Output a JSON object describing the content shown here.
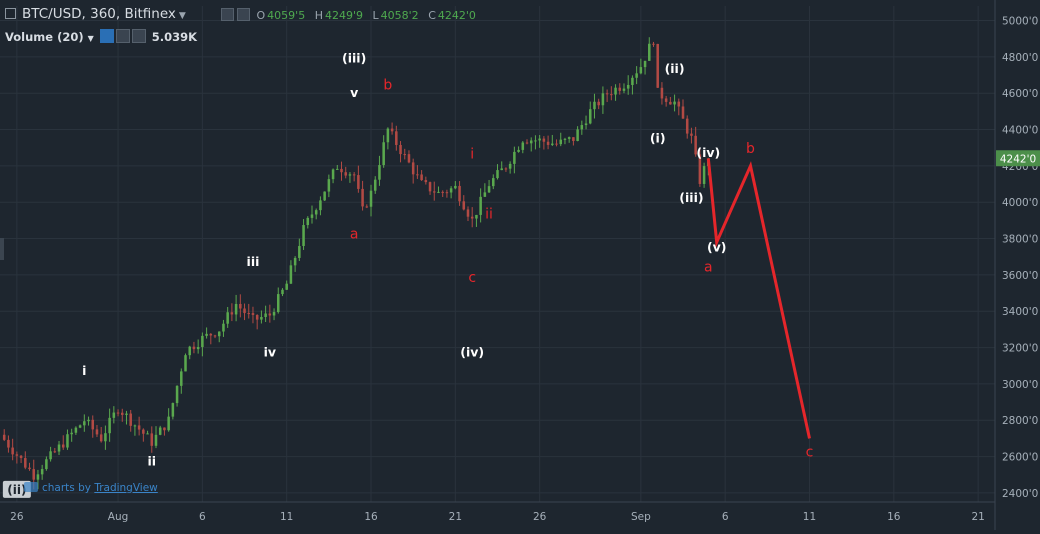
{
  "header": {
    "symbol_label": "BTC/USD, 360, Bitfinex",
    "ohlc": {
      "o_key": "O",
      "o": "4059'5",
      "h_key": "H",
      "h": "4249'9",
      "l_key": "L",
      "l": "4058'2",
      "c_key": "C",
      "c": "4242'0"
    },
    "volume_label": "Volume (20)",
    "volume_value": "5.039K"
  },
  "watermark": {
    "prefix": "charts by",
    "brand": "TradingView"
  },
  "colors": {
    "background": "#1e262f",
    "grid": "#2a333d",
    "up": "#5aa84e",
    "down": "#b24a44",
    "wave_red": "#e5262b",
    "label_white": "#ffffff",
    "label_red": "#e5262b",
    "price_tag": "#4c8f4a",
    "axis_text": "#a6b0ba"
  },
  "chart_data": {
    "type": "candlestick",
    "symbol": "BTC/USD",
    "timeframe_minutes": 360,
    "exchange": "Bitfinex",
    "last_price": 4242.0,
    "last_price_label": "4242'0",
    "ylim": [
      2350,
      5080
    ],
    "xlim": [
      "2017-07-25",
      "2017-09-22"
    ],
    "y_ticks": [
      {
        "value": 2400,
        "label": "2400'0"
      },
      {
        "value": 2600,
        "label": "2600'0"
      },
      {
        "value": 2800,
        "label": "2800'0"
      },
      {
        "value": 3000,
        "label": "3000'0"
      },
      {
        "value": 3200,
        "label": "3200'0"
      },
      {
        "value": 3400,
        "label": "3400'0"
      },
      {
        "value": 3600,
        "label": "3600'0"
      },
      {
        "value": 3800,
        "label": "3800'0"
      },
      {
        "value": 4000,
        "label": "4000'0"
      },
      {
        "value": 4200,
        "label": "4200'0"
      },
      {
        "value": 4400,
        "label": "4400'0"
      },
      {
        "value": 4600,
        "label": "4600'0"
      },
      {
        "value": 4800,
        "label": "4800'0"
      },
      {
        "value": 5000,
        "label": "5000'0"
      }
    ],
    "x_ticks": [
      {
        "date": "2017-07-26",
        "label": "26"
      },
      {
        "date": "2017-08-01",
        "label": "Aug"
      },
      {
        "date": "2017-08-06",
        "label": "6"
      },
      {
        "date": "2017-08-11",
        "label": "11"
      },
      {
        "date": "2017-08-16",
        "label": "16"
      },
      {
        "date": "2017-08-21",
        "label": "21"
      },
      {
        "date": "2017-08-26",
        "label": "26"
      },
      {
        "date": "2017-09-01",
        "label": "Sep"
      },
      {
        "date": "2017-09-06",
        "label": "6"
      },
      {
        "date": "2017-09-11",
        "label": "11"
      },
      {
        "date": "2017-09-16",
        "label": "16"
      },
      {
        "date": "2017-09-21",
        "label": "21"
      }
    ],
    "price_path": [
      {
        "x": "2017-07-25",
        "y": 2720
      },
      {
        "x": "2017-07-26",
        "y": 2610
      },
      {
        "x": "2017-07-27",
        "y": 2500
      },
      {
        "x": "2017-07-29",
        "y": 2700
      },
      {
        "x": "2017-07-30",
        "y": 2800
      },
      {
        "x": "2017-07-31",
        "y": 2700
      },
      {
        "x": "2017-08-01",
        "y": 2870
      },
      {
        "x": "2017-08-03",
        "y": 2680
      },
      {
        "x": "2017-08-04",
        "y": 2800
      },
      {
        "x": "2017-08-05",
        "y": 3180
      },
      {
        "x": "2017-08-06",
        "y": 3250
      },
      {
        "x": "2017-08-07",
        "y": 3300
      },
      {
        "x": "2017-08-08",
        "y": 3440
      },
      {
        "x": "2017-08-09",
        "y": 3350
      },
      {
        "x": "2017-08-10",
        "y": 3380
      },
      {
        "x": "2017-08-11",
        "y": 3550
      },
      {
        "x": "2017-08-12",
        "y": 3850
      },
      {
        "x": "2017-08-14",
        "y": 4200
      },
      {
        "x": "2017-08-15",
        "y": 4150
      },
      {
        "x": "2017-08-15T12:00",
        "y": 3950
      },
      {
        "x": "2017-08-16",
        "y": 4050
      },
      {
        "x": "2017-08-17",
        "y": 4400
      },
      {
        "x": "2017-08-18",
        "y": 4250
      },
      {
        "x": "2017-08-19",
        "y": 4100
      },
      {
        "x": "2017-08-20",
        "y": 4050
      },
      {
        "x": "2017-08-21",
        "y": 4080
      },
      {
        "x": "2017-08-22",
        "y": 3900
      },
      {
        "x": "2017-08-23",
        "y": 4100
      },
      {
        "x": "2017-08-24",
        "y": 4200
      },
      {
        "x": "2017-08-25",
        "y": 4350
      },
      {
        "x": "2017-08-26",
        "y": 4340
      },
      {
        "x": "2017-08-27",
        "y": 4320
      },
      {
        "x": "2017-08-28",
        "y": 4350
      },
      {
        "x": "2017-08-29",
        "y": 4500
      },
      {
        "x": "2017-08-30",
        "y": 4600
      },
      {
        "x": "2017-08-31",
        "y": 4650
      },
      {
        "x": "2017-09-01",
        "y": 4750
      },
      {
        "x": "2017-09-01T18:00",
        "y": 4900
      },
      {
        "x": "2017-09-02",
        "y": 4600
      },
      {
        "x": "2017-09-03",
        "y": 4550
      },
      {
        "x": "2017-09-04",
        "y": 4350
      },
      {
        "x": "2017-09-04T12:00",
        "y": 4120
      },
      {
        "x": "2017-09-05",
        "y": 4242
      }
    ],
    "projection_line": [
      {
        "x": "2017-09-05",
        "y": 4242
      },
      {
        "x": "2017-09-05T12:00",
        "y": 3780
      },
      {
        "x": "2017-09-07T12:00",
        "y": 4200
      },
      {
        "x": "2017-09-11",
        "y": 2700
      }
    ],
    "wave_labels": [
      {
        "text": "(ii)",
        "x": "2017-07-26",
        "y": 2400,
        "color": "white",
        "boxed": true
      },
      {
        "text": "i",
        "x": "2017-07-30",
        "y": 3050,
        "color": "white"
      },
      {
        "text": "ii",
        "x": "2017-08-03",
        "y": 2550,
        "color": "white"
      },
      {
        "text": "iii",
        "x": "2017-08-09",
        "y": 3650,
        "color": "white"
      },
      {
        "text": "iv",
        "x": "2017-08-10",
        "y": 3150,
        "color": "white"
      },
      {
        "text": "(iii)",
        "x": "2017-08-15",
        "y": 4770,
        "color": "white"
      },
      {
        "text": "v",
        "x": "2017-08-15",
        "y": 4580,
        "color": "white"
      },
      {
        "text": "a",
        "x": "2017-08-15",
        "y": 3800,
        "color": "red"
      },
      {
        "text": "b",
        "x": "2017-08-17",
        "y": 4620,
        "color": "red"
      },
      {
        "text": "i",
        "x": "2017-08-22",
        "y": 4240,
        "color": "red"
      },
      {
        "text": "ii",
        "x": "2017-08-23",
        "y": 3910,
        "color": "red"
      },
      {
        "text": "c",
        "x": "2017-08-22",
        "y": 3560,
        "color": "red"
      },
      {
        "text": "(iv)",
        "x": "2017-08-22",
        "y": 3150,
        "color": "white"
      },
      {
        "text": "(ii)",
        "x": "2017-09-03",
        "y": 4710,
        "color": "white"
      },
      {
        "text": "(i)",
        "x": "2017-09-02",
        "y": 4330,
        "color": "white"
      },
      {
        "text": "(iv)",
        "x": "2017-09-05",
        "y": 4250,
        "color": "white"
      },
      {
        "text": "(iii)",
        "x": "2017-09-04",
        "y": 4000,
        "color": "white"
      },
      {
        "text": "(v)",
        "x": "2017-09-05T12:00",
        "y": 3730,
        "color": "white"
      },
      {
        "text": "a",
        "x": "2017-09-05",
        "y": 3620,
        "color": "red"
      },
      {
        "text": "b",
        "x": "2017-09-07T12:00",
        "y": 4270,
        "color": "red"
      },
      {
        "text": "c",
        "x": "2017-09-11",
        "y": 2600,
        "color": "red"
      }
    ],
    "grid": true,
    "legend": "none"
  }
}
